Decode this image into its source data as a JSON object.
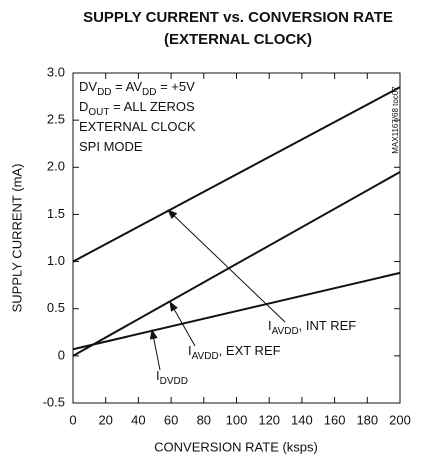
{
  "chart_data": {
    "type": "line",
    "title": [
      "SUPPLY CURRENT vs. CONVERSION RATE",
      "(EXTERNAL CLOCK)"
    ],
    "x_label": "CONVERSION RATE (ksps)",
    "y_label": "SUPPLY CURRENT (mA)",
    "side_note": "MAX1167/68 toc07",
    "xlim": [
      0,
      200
    ],
    "xticks": [
      0,
      20,
      40,
      60,
      80,
      100,
      120,
      140,
      160,
      180,
      200
    ],
    "ylim": [
      -0.5,
      3
    ],
    "yticks": [
      {
        "value": 3,
        "label": "3.0"
      },
      2.5,
      {
        "value": 2,
        "label": "2.0"
      },
      1.5,
      {
        "value": 1,
        "label": "1.0"
      },
      0.5,
      0,
      -0.5
    ],
    "x": [
      0,
      200
    ],
    "series": [
      {
        "color": "#111111",
        "values": [
          1.0,
          2.85
        ]
      },
      {
        "color": "#111111",
        "values": [
          0.0,
          1.95
        ]
      },
      {
        "color": "#111111",
        "values": [
          0.07,
          0.88
        ]
      }
    ],
    "conditions": [
      [
        {
          "text": "DV"
        },
        {
          "text": "DD",
          "sub": true
        },
        {
          "text": " = AV"
        },
        {
          "text": "DD",
          "sub": true
        },
        {
          "text": " = +5V"
        }
      ],
      [
        {
          "text": "D"
        },
        {
          "text": "OUT",
          "sub": true
        },
        {
          "text": " = ALL ZEROS"
        }
      ],
      [
        {
          "text": "EXTERNAL CLOCK"
        }
      ],
      [
        {
          "text": "SPI MODE"
        }
      ]
    ],
    "annotations": [
      [
        {
          "text": "I"
        },
        {
          "text": "AVDD",
          "sub": true
        },
        {
          "text": ", INT REF"
        }
      ],
      [
        {
          "text": "I"
        },
        {
          "text": "AVDD",
          "sub": true
        },
        {
          "text": ", EXT REF"
        }
      ],
      [
        {
          "text": "I"
        },
        {
          "text": "DVDD",
          "sub": true
        }
      ]
    ]
  }
}
